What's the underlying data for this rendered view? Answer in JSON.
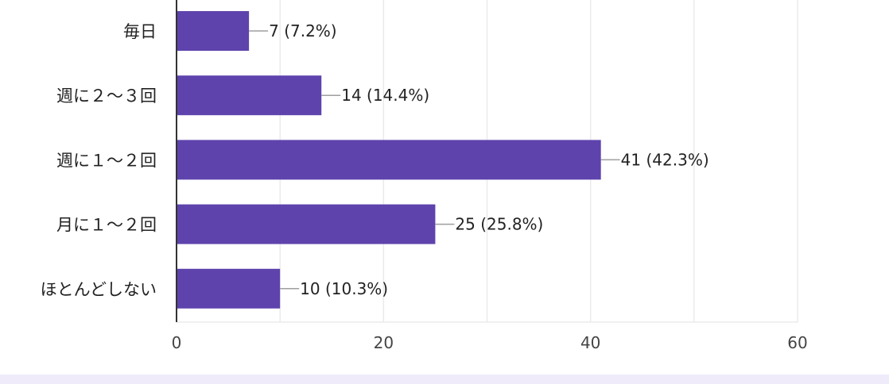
{
  "colors": {
    "bar": "#5e43ad",
    "grid": "#ebebeb",
    "axis": "#333333",
    "leader": "#9e9e9e",
    "footer": "#f0ebfb"
  },
  "chart_data": {
    "type": "bar",
    "orientation": "horizontal",
    "categories": [
      "毎日",
      "週に２〜３回",
      "週に１〜２回",
      "月に１〜２回",
      "ほとんどしない"
    ],
    "values": [
      7,
      14,
      41,
      25,
      10
    ],
    "percentages": [
      "7.2%",
      "14.4%",
      "42.3%",
      "25.8%",
      "10.3%"
    ],
    "data_labels": [
      "7 (7.2%)",
      "14 (14.4%)",
      "41 (42.3%)",
      "25 (25.8%)",
      "10 (10.3%)"
    ],
    "xlim": [
      0,
      60
    ],
    "x_ticks": [
      "0",
      "20",
      "40",
      "60"
    ],
    "x_tick_values": [
      0,
      20,
      40,
      60
    ],
    "minor_grid_values": [
      10,
      30,
      50
    ],
    "grid": true,
    "legend": "none"
  }
}
